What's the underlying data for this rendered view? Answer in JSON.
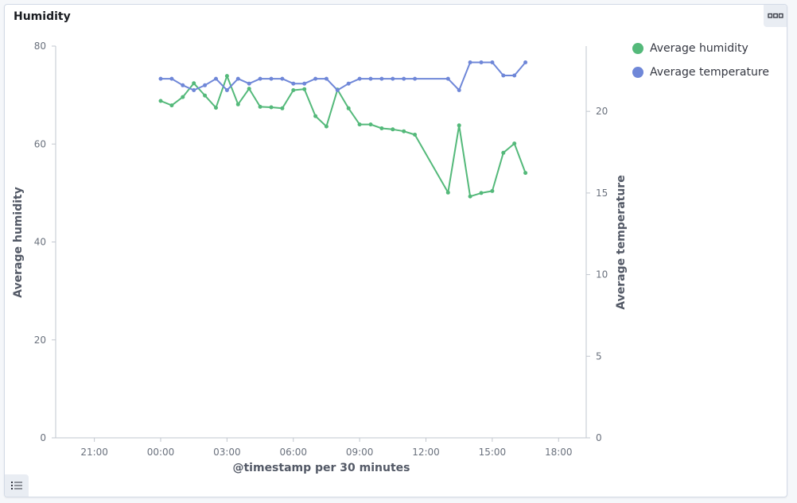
{
  "panel": {
    "title": "Humidity",
    "options_icon": "ellipsis-icon",
    "legend_toggle_icon": "list-icon"
  },
  "colors": {
    "humidity": "#54b97a",
    "temperature": "#6f87d8",
    "axis": "#c2c7cf",
    "tick_text": "#6a717d",
    "label_text": "#535966"
  },
  "legend": {
    "items": [
      {
        "label": "Average humidity",
        "color": "#54b97a"
      },
      {
        "label": "Average temperature",
        "color": "#6f87d8"
      }
    ]
  },
  "chart_data": {
    "type": "line",
    "title": "",
    "xlabel": "@timestamp per 30 minutes",
    "ylabel_left": "Average humidity",
    "ylabel_right": "Average temperature",
    "x_ticks": [
      "21:00",
      "00:00",
      "03:00",
      "06:00",
      "09:00",
      "12:00",
      "15:00",
      "18:00"
    ],
    "x_tick_hours": [
      -3,
      0,
      3,
      6,
      9,
      12,
      15,
      18
    ],
    "xlim_hours": [
      -4.75,
      19.25
    ],
    "y_left_ticks": [
      0,
      20,
      40,
      60,
      80
    ],
    "ylim_left": [
      0,
      80
    ],
    "y_right_ticks": [
      0,
      5,
      10,
      15,
      20
    ],
    "ylim_right": [
      0,
      24
    ],
    "grid": false,
    "legend_position": "right",
    "series": [
      {
        "name": "Average humidity",
        "axis": "left",
        "x": [
          "00:00",
          "00:30",
          "01:00",
          "01:30",
          "02:00",
          "02:30",
          "03:00",
          "03:30",
          "04:00",
          "04:30",
          "05:00",
          "05:30",
          "06:00",
          "06:30",
          "07:00",
          "07:30",
          "08:00",
          "08:30",
          "09:00",
          "09:30",
          "10:00",
          "10:30",
          "11:00",
          "11:30",
          "13:00",
          "13:30",
          "14:00",
          "14:30",
          "15:00",
          "15:30",
          "16:00",
          "16:30"
        ],
        "values": [
          68.8,
          67.9,
          69.6,
          72.4,
          69.9,
          67.4,
          73.9,
          68.1,
          71.3,
          67.6,
          67.5,
          67.3,
          71.0,
          71.2,
          65.7,
          63.6,
          71.1,
          67.3,
          64.0,
          64.0,
          63.2,
          63.0,
          62.6,
          61.9,
          50.1,
          63.8,
          49.3,
          50.0,
          50.4,
          58.2,
          60.1,
          54.1
        ]
      },
      {
        "name": "Average temperature",
        "axis": "right",
        "x": [
          "00:00",
          "00:30",
          "01:00",
          "01:30",
          "02:00",
          "02:30",
          "03:00",
          "03:30",
          "04:00",
          "04:30",
          "05:00",
          "05:30",
          "06:00",
          "06:30",
          "07:00",
          "07:30",
          "08:00",
          "08:30",
          "09:00",
          "09:30",
          "10:00",
          "10:30",
          "11:00",
          "11:30",
          "13:00",
          "13:30",
          "14:00",
          "14:30",
          "15:00",
          "15:30",
          "16:00",
          "16:30"
        ],
        "values": [
          22.0,
          22.0,
          21.6,
          21.3,
          21.6,
          22.0,
          21.3,
          22.0,
          21.7,
          22.0,
          22.0,
          22.0,
          21.7,
          21.7,
          22.0,
          22.0,
          21.3,
          21.7,
          22.0,
          22.0,
          22.0,
          22.0,
          22.0,
          22.0,
          22.0,
          21.3,
          23.0,
          23.0,
          23.0,
          22.2,
          22.2,
          23.0
        ]
      }
    ]
  }
}
